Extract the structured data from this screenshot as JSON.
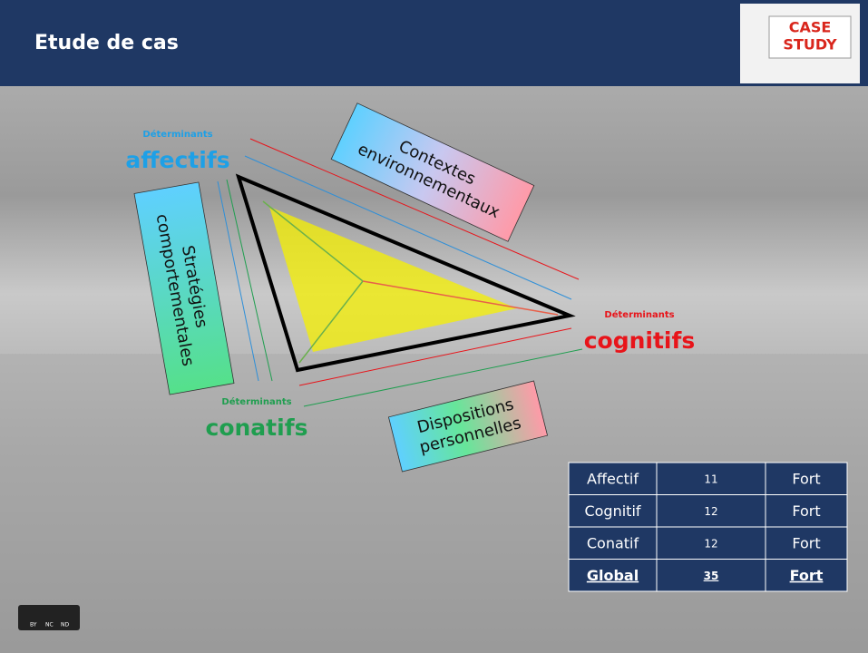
{
  "header": {
    "title": "Etude de cas",
    "badge": [
      "CASE",
      "STUDY"
    ]
  },
  "poles": [
    {
      "small": "Déterminants",
      "label": "affectifs"
    },
    {
      "small": "Déterminants",
      "label": "cognitifs"
    },
    {
      "small": "Déterminants",
      "label": "conatifs"
    }
  ],
  "boxes": [
    {
      "lines": [
        "Contextes",
        "environnementaux"
      ]
    },
    {
      "lines": [
        "Stratégies",
        "comportementales"
      ]
    },
    {
      "lines": [
        "Dispositions",
        "personnelles"
      ]
    }
  ],
  "table": {
    "rows": [
      [
        "Affectif",
        "11",
        "Fort"
      ],
      [
        "Cognitif",
        "12",
        "Fort"
      ],
      [
        "Conatif",
        "12",
        "Fort"
      ],
      [
        "Global",
        "35",
        "Fort"
      ]
    ]
  },
  "license": [
    "BY",
    "NC",
    "ND"
  ]
}
